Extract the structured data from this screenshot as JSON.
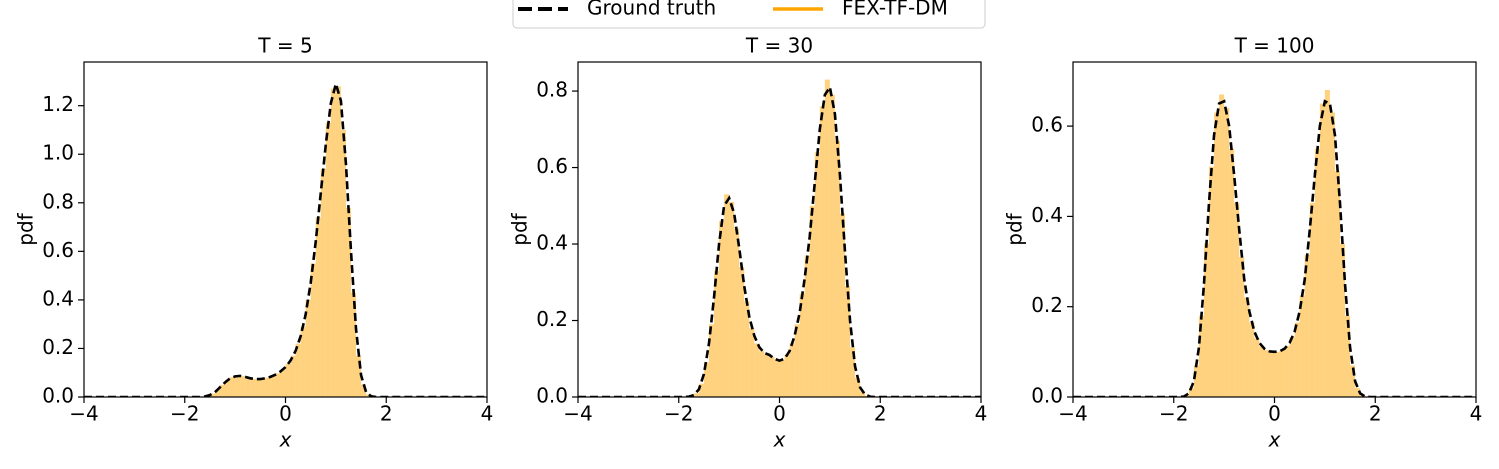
{
  "legend": [
    {
      "name": "Ground truth",
      "color": "#000000",
      "dashed": true
    },
    {
      "name": "FEX-TF-DM",
      "color": "#ffa500",
      "dashed": false
    }
  ],
  "chart_data": [
    {
      "type": "histogram",
      "title": "T = 5",
      "xlabel": "x",
      "ylabel": "pdf",
      "bins": [
        -2,
        -1.9,
        -1.8,
        -1.7,
        -1.6,
        -1.5,
        -1.4,
        -1.3,
        -1.2,
        -1.1,
        -1,
        -0.9,
        -0.8,
        -0.7,
        -0.6,
        -0.5,
        -0.4,
        -0.3,
        -0.2,
        -0.1,
        0,
        0.1,
        0.2,
        0.3,
        0.4,
        0.5,
        0.6,
        0.7,
        0.8,
        0.9,
        1,
        1.1,
        1.2,
        1.3,
        1.4,
        1.5,
        1.6,
        1.7,
        1.8,
        1.9,
        2
      ],
      "counts": [
        0,
        0,
        0,
        0,
        0.005,
        0.014,
        0.03,
        0.05,
        0.07,
        0.082,
        0.087,
        0.086,
        0.08,
        0.075,
        0.073,
        0.076,
        0.08,
        0.088,
        0.098,
        0.114,
        0.136,
        0.17,
        0.22,
        0.29,
        0.4,
        0.55,
        0.74,
        0.94,
        1.13,
        1.27,
        1.28,
        1.1,
        0.78,
        0.43,
        0.17,
        0.05,
        0.01,
        0.001,
        0,
        0
      ],
      "hist_color": "#ffa500",
      "series": [
        {
          "color": "#000000",
          "dashed": true,
          "x": [
            -4,
            -2,
            -1.9,
            -1.8,
            -1.7,
            -1.6,
            -1.5,
            -1.4,
            -1.3,
            -1.2,
            -1.1,
            -1,
            -0.9,
            -0.8,
            -0.7,
            -0.6,
            -0.5,
            -0.4,
            -0.3,
            -0.2,
            -0.1,
            0,
            0.1,
            0.2,
            0.3,
            0.4,
            0.5,
            0.6,
            0.7,
            0.8,
            0.9,
            1,
            1.1,
            1.2,
            1.3,
            1.4,
            1.5,
            1.6,
            1.7,
            1.8,
            1.9,
            2,
            4
          ],
          "values": [
            0,
            0,
            0,
            0,
            0,
            0.002,
            0.008,
            0.02,
            0.04,
            0.06,
            0.077,
            0.085,
            0.087,
            0.083,
            0.077,
            0.074,
            0.074,
            0.077,
            0.083,
            0.092,
            0.105,
            0.123,
            0.15,
            0.19,
            0.25,
            0.34,
            0.47,
            0.64,
            0.84,
            1.04,
            1.21,
            1.29,
            1.22,
            0.96,
            0.6,
            0.28,
            0.09,
            0.02,
            0.003,
            0,
            0,
            0,
            0
          ]
        }
      ],
      "xlim": [
        -4,
        4
      ],
      "ylim": [
        0,
        1.38
      ],
      "xticks": [
        {
          "value": -4,
          "label": "−4"
        },
        {
          "value": -2,
          "label": "−2"
        },
        0,
        2,
        4
      ],
      "yticks": [
        {
          "value": 0,
          "label": "0.0"
        },
        0.2,
        0.4,
        0.6,
        0.8,
        {
          "value": 1,
          "label": "1.0"
        },
        1.2
      ]
    },
    {
      "type": "histogram",
      "title": "T = 30",
      "xlabel": "x",
      "ylabel": "pdf",
      "bins": [
        -2,
        -1.9,
        -1.8,
        -1.7,
        -1.6,
        -1.5,
        -1.4,
        -1.3,
        -1.2,
        -1.1,
        -1,
        -0.9,
        -0.8,
        -0.7,
        -0.6,
        -0.5,
        -0.4,
        -0.3,
        -0.2,
        -0.1,
        0,
        0.1,
        0.2,
        0.3,
        0.4,
        0.5,
        0.6,
        0.7,
        0.8,
        0.9,
        1,
        1.1,
        1.2,
        1.3,
        1.4,
        1.5,
        1.6,
        1.7,
        1.8,
        1.9,
        2
      ],
      "counts": [
        0,
        0,
        0.001,
        0.01,
        0.035,
        0.09,
        0.19,
        0.33,
        0.46,
        0.53,
        0.51,
        0.44,
        0.34,
        0.25,
        0.18,
        0.14,
        0.12,
        0.112,
        0.105,
        0.098,
        0.096,
        0.11,
        0.14,
        0.19,
        0.27,
        0.37,
        0.5,
        0.64,
        0.76,
        0.83,
        0.79,
        0.67,
        0.48,
        0.29,
        0.13,
        0.05,
        0.014,
        0.003,
        0,
        0
      ],
      "hist_color": "#ffa500",
      "series": [
        {
          "color": "#000000",
          "dashed": true,
          "x": [
            -4,
            -2,
            -1.9,
            -1.8,
            -1.7,
            -1.6,
            -1.5,
            -1.4,
            -1.3,
            -1.2,
            -1.1,
            -1,
            -0.9,
            -0.8,
            -0.7,
            -0.6,
            -0.5,
            -0.4,
            -0.3,
            -0.2,
            -0.1,
            0,
            0.1,
            0.2,
            0.3,
            0.4,
            0.5,
            0.6,
            0.7,
            0.8,
            0.9,
            1,
            1.1,
            1.2,
            1.3,
            1.4,
            1.5,
            1.6,
            1.7,
            1.8,
            1.9,
            2,
            4
          ],
          "values": [
            0,
            0,
            0,
            0.001,
            0.005,
            0.02,
            0.06,
            0.14,
            0.26,
            0.4,
            0.5,
            0.52,
            0.48,
            0.39,
            0.29,
            0.21,
            0.16,
            0.13,
            0.115,
            0.11,
            0.1,
            0.095,
            0.1,
            0.12,
            0.16,
            0.22,
            0.31,
            0.42,
            0.56,
            0.7,
            0.79,
            0.81,
            0.74,
            0.58,
            0.38,
            0.2,
            0.08,
            0.025,
            0.006,
            0.001,
            0,
            0,
            0
          ]
        }
      ],
      "xlim": [
        -4,
        4
      ],
      "ylim": [
        0,
        0.876
      ],
      "xticks": [
        {
          "value": -4,
          "label": "−4"
        },
        {
          "value": -2,
          "label": "−2"
        },
        0,
        2,
        4
      ],
      "yticks": [
        {
          "value": 0,
          "label": "0.0"
        },
        0.2,
        0.4,
        0.6,
        0.8
      ]
    },
    {
      "type": "histogram",
      "title": "T = 100",
      "xlabel": "x",
      "ylabel": "pdf",
      "bins": [
        -2,
        -1.9,
        -1.8,
        -1.7,
        -1.6,
        -1.5,
        -1.4,
        -1.3,
        -1.2,
        -1.1,
        -1,
        -0.9,
        -0.8,
        -0.7,
        -0.6,
        -0.5,
        -0.4,
        -0.3,
        -0.2,
        -0.1,
        0,
        0.1,
        0.2,
        0.3,
        0.4,
        0.5,
        0.6,
        0.7,
        0.8,
        0.9,
        1,
        1.1,
        1.2,
        1.3,
        1.4,
        1.5,
        1.6,
        1.7,
        1.8,
        1.9,
        2
      ],
      "counts": [
        0,
        0,
        0.003,
        0.02,
        0.07,
        0.18,
        0.34,
        0.51,
        0.63,
        0.67,
        0.64,
        0.55,
        0.43,
        0.31,
        0.22,
        0.165,
        0.13,
        0.112,
        0.104,
        0.1,
        0.1,
        0.104,
        0.113,
        0.132,
        0.165,
        0.225,
        0.315,
        0.43,
        0.55,
        0.65,
        0.68,
        0.63,
        0.5,
        0.34,
        0.18,
        0.07,
        0.02,
        0.003,
        0,
        0
      ],
      "hist_color": "#ffa500",
      "series": [
        {
          "color": "#000000",
          "dashed": true,
          "x": [
            -4,
            -2,
            -1.9,
            -1.8,
            -1.7,
            -1.6,
            -1.5,
            -1.4,
            -1.3,
            -1.2,
            -1.1,
            -1,
            -0.9,
            -0.8,
            -0.7,
            -0.6,
            -0.5,
            -0.4,
            -0.3,
            -0.2,
            -0.1,
            0,
            0.1,
            0.2,
            0.3,
            0.4,
            0.5,
            0.6,
            0.7,
            0.8,
            0.9,
            1,
            1.1,
            1.2,
            1.3,
            1.4,
            1.5,
            1.6,
            1.7,
            1.8,
            1.9,
            2,
            4
          ],
          "values": [
            0,
            0,
            0,
            0.001,
            0.008,
            0.035,
            0.11,
            0.25,
            0.43,
            0.58,
            0.65,
            0.655,
            0.6,
            0.49,
            0.37,
            0.26,
            0.19,
            0.145,
            0.12,
            0.107,
            0.101,
            0.1,
            0.101,
            0.107,
            0.12,
            0.145,
            0.19,
            0.26,
            0.37,
            0.49,
            0.6,
            0.655,
            0.65,
            0.58,
            0.43,
            0.25,
            0.11,
            0.035,
            0.008,
            0.001,
            0,
            0,
            0
          ]
        }
      ],
      "xlim": [
        -4,
        4
      ],
      "ylim": [
        0,
        0.742
      ],
      "xticks": [
        {
          "value": -4,
          "label": "−4"
        },
        {
          "value": -2,
          "label": "−2"
        },
        0,
        2,
        4
      ],
      "yticks": [
        {
          "value": 0,
          "label": "0.0"
        },
        0.2,
        0.4,
        0.6
      ]
    }
  ]
}
